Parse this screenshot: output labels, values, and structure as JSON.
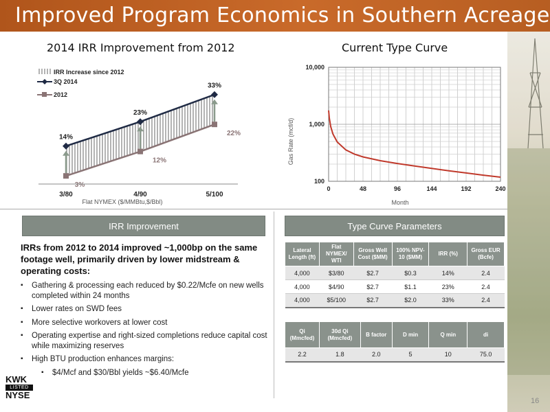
{
  "title": "Improved Program Economics in Southern Acreage",
  "left_chart_heading": "2014 IRR Improvement from 2012",
  "right_chart_heading": "Current Type Curve",
  "colors": {
    "title_bar": "#b8581f",
    "line_3q2014": "#1f2a44",
    "line_2012": "#8a7475",
    "panel_header": "#828b84"
  },
  "chart_data": [
    {
      "type": "line",
      "title": "2014 IRR Improvement from 2012",
      "xlabel": "Flat NYMEX ($/MMBtu,$/Bbl)",
      "ylabel": "",
      "categories": [
        "3/80",
        "4/90",
        "5/100"
      ],
      "legend": [
        "IRR Increase since 2012",
        "3Q 2014",
        "2012"
      ],
      "legend_position": "top-left",
      "series": [
        {
          "name": "3Q 2014",
          "values": [
            14,
            23,
            33
          ],
          "labels": [
            "14%",
            "23%",
            "33%"
          ],
          "marker": "diamond"
        },
        {
          "name": "2012",
          "values": [
            3,
            12,
            22
          ],
          "labels": [
            "3%",
            "12%",
            "22%"
          ],
          "marker": "square"
        }
      ],
      "fill_between": "IRR Increase since 2012",
      "ylim": [
        0,
        38
      ]
    },
    {
      "type": "line",
      "title": "Current Type Curve",
      "xlabel": "Month",
      "ylabel": "Gas Rate (mcf/d)",
      "x_ticks": [
        "0",
        "48",
        "96",
        "144",
        "192",
        "240"
      ],
      "y_ticks": [
        "100",
        "1,000",
        "10,000"
      ],
      "xlim": [
        0,
        240
      ],
      "ylim": [
        100,
        10000
      ],
      "y_scale": "log",
      "grid": true,
      "series": [
        {
          "name": "",
          "x": [
            0,
            1,
            3,
            6,
            12,
            24,
            36,
            48,
            72,
            96,
            120,
            144,
            168,
            192,
            216,
            240
          ],
          "y": [
            1750,
            1290,
            905,
            675,
            490,
            355,
            300,
            268,
            230,
            205,
            185,
            168,
            153,
            140,
            128,
            118
          ]
        }
      ]
    }
  ],
  "irr_panel": {
    "header": "IRR Improvement",
    "lead": "IRRs from 2012 to 2014 improved ~1,000bp on the same footage well, primarily driven by lower midstream & operating costs:",
    "bullets": [
      "Gathering & processing each reduced by $0.22/Mcfe on new wells completed within 24 months",
      "Lower rates on SWD fees",
      "More selective workovers at lower cost",
      "Operating expertise and right-sized completions reduce capital cost while maximizing reserves",
      "High BTU production enhances margins:"
    ],
    "sub_bullet": "$4/Mcf and $30/Bbl yields ~$6.40/Mcfe"
  },
  "type_curve_panel": {
    "header": "Type Curve Parameters",
    "table1": {
      "headers": [
        "Lateral Length (ft)",
        "Flat NYMEX/ WTI",
        "Gross Well Cost ($MM)",
        "100% NPV-10 ($MM)",
        "IRR (%)",
        "Gross EUR (Bcfe)"
      ],
      "rows": [
        [
          "4,000",
          "$3/80",
          "$2.7",
          "$0.3",
          "14%",
          "2.4"
        ],
        [
          "4,000",
          "$4/90",
          "$2.7",
          "$1.1",
          "23%",
          "2.4"
        ],
        [
          "4,000",
          "$5/100",
          "$2.7",
          "$2.0",
          "33%",
          "2.4"
        ]
      ]
    },
    "table2": {
      "headers": [
        "Qi (Mmcfed)",
        "30d Qi (Mmcfed)",
        "B factor",
        "D min",
        "Q min",
        "di"
      ],
      "rows": [
        [
          "2.2",
          "1.8",
          "2.0",
          "5",
          "10",
          "75.0"
        ]
      ]
    }
  },
  "logo": {
    "line1": "KWK",
    "line2": "LISTED",
    "line3": "NYSE"
  },
  "page_number": "16"
}
